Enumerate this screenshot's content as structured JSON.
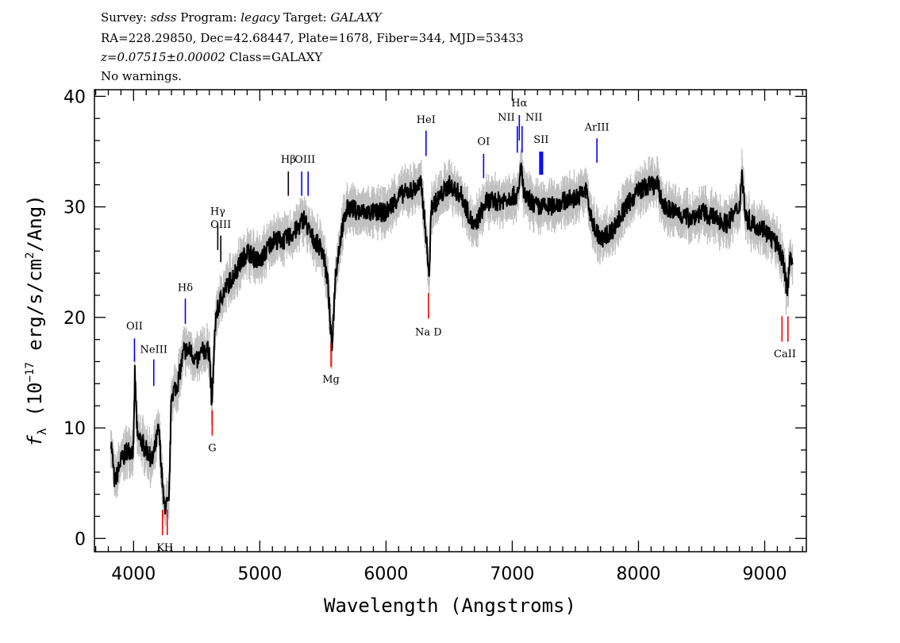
{
  "header": {
    "line1": {
      "survey_label": "Survey: ",
      "survey": "sdss",
      "program_label": " Program: ",
      "program": "legacy",
      "target_label": " Target: ",
      "target": "GALAXY"
    },
    "line2": "RA=228.29850, Dec=42.68447, Plate=1678, Fiber=344, MJD=53433",
    "line3": {
      "redshift": "z=0.07515±0.00002",
      "class": " Class=GALAXY"
    },
    "line4": "No warnings."
  },
  "chart_data": {
    "type": "line",
    "xlabel": "Wavelength (Angstroms)",
    "ylabel": "f_λ (10^-17 erg/s/cm^2/Ang)",
    "ylabel_parts": {
      "f": "f",
      "sub": "λ",
      "pre": " (10",
      "sup": "−17",
      "mid": " erg/s/cm",
      "sup2": "2",
      "post": "/Ang)"
    },
    "xlim": [
      3690,
      9330
    ],
    "ylim": [
      -1.2,
      40.6
    ],
    "xticks": [
      4000,
      5000,
      6000,
      7000,
      8000,
      9000
    ],
    "yticks": [
      0,
      10,
      20,
      30,
      40
    ],
    "xtick_labels": [
      "4000",
      "5000",
      "6000",
      "7000",
      "8000",
      "9000"
    ],
    "ytick_labels": [
      "0",
      "10",
      "20",
      "30",
      "40"
    ],
    "colors": {
      "flux": "#000000",
      "error_band": "#c0c0c0",
      "emission": "#0000ff",
      "absorption": "#ff0000",
      "both": "#000000"
    },
    "spectrum": {
      "wavelength": [
        3820,
        3850,
        3900,
        3950,
        4000,
        4010,
        4030,
        4050,
        4100,
        4150,
        4200,
        4240,
        4280,
        4300,
        4350,
        4400,
        4450,
        4500,
        4550,
        4600,
        4620,
        4650,
        4700,
        4750,
        4800,
        4900,
        5000,
        5100,
        5200,
        5300,
        5350,
        5400,
        5500,
        5540,
        5570,
        5600,
        5650,
        5700,
        5800,
        5900,
        6000,
        6100,
        6200,
        6280,
        6320,
        6340,
        6360,
        6400,
        6500,
        6600,
        6700,
        6750,
        6800,
        6900,
        7000,
        7050,
        7070,
        7090,
        7200,
        7300,
        7400,
        7500,
        7590,
        7620,
        7700,
        7800,
        7900,
        8000,
        8100,
        8150,
        8200,
        8300,
        8400,
        8500,
        8600,
        8700,
        8800,
        8820,
        8850,
        8900,
        9000,
        9100,
        9150,
        9180,
        9200,
        9220
      ],
      "flux": [
        9,
        5,
        7,
        8,
        8,
        15,
        9,
        9,
        8,
        7,
        10,
        3,
        3,
        13,
        14,
        17,
        17,
        16,
        17,
        17,
        12,
        20,
        22,
        23,
        24,
        26,
        25,
        27,
        27,
        28,
        29,
        27.5,
        26,
        23,
        17,
        24,
        28,
        30,
        29.5,
        29.5,
        29.5,
        31,
        31.5,
        32,
        27,
        23.5,
        30,
        30.5,
        32,
        31,
        28,
        29.5,
        30.5,
        30.5,
        31,
        31,
        34,
        31,
        30,
        30,
        30.5,
        30.8,
        31.5,
        29,
        27,
        28,
        30,
        31.5,
        32,
        32,
        30,
        29.5,
        29,
        29.5,
        29,
        28.5,
        30,
        33,
        29,
        28.5,
        28,
        26.5,
        25,
        22,
        26,
        25
      ]
    },
    "lines": [
      {
        "label": "OII",
        "wavelength": [
          4007
        ],
        "kind": "emission",
        "marker": [
          16.0,
          18.1
        ],
        "label_y": 18.9
      },
      {
        "label": "NeIII",
        "wavelength": [
          4160
        ],
        "kind": "emission",
        "marker": [
          13.8,
          16.2
        ],
        "label_y": 16.8
      },
      {
        "label": "Hδ",
        "wavelength": [
          4410
        ],
        "kind": "emission",
        "marker": [
          19.4,
          21.7
        ],
        "label_y": 22.4
      },
      {
        "label": "Hγ",
        "wavelength": [
          4667
        ],
        "kind": "both",
        "marker": [
          26.1,
          28.4
        ],
        "label_y": 29.3
      },
      {
        "label": "OIII",
        "wavelength": [
          4691
        ],
        "kind": "both",
        "marker": [
          25.0,
          27.4
        ],
        "label_y": 28.1
      },
      {
        "label": "Hβ",
        "wavelength": [
          5226
        ],
        "kind": "both",
        "marker": [
          31.0,
          33.2
        ],
        "label_y": 34.0
      },
      {
        "label": "OIII",
        "wavelength": [
          5332,
          5383
        ],
        "kind": "emission",
        "marker": [
          31.0,
          33.2
        ],
        "label_y": 34.0
      },
      {
        "label": "HeI",
        "wavelength": [
          6317
        ],
        "kind": "emission",
        "marker": [
          34.6,
          36.9
        ],
        "label_y": 37.6
      },
      {
        "label": "OI",
        "wavelength": [
          6773
        ],
        "kind": "emission",
        "marker": [
          32.6,
          34.8
        ],
        "label_y": 35.6
      },
      {
        "label": "NII",
        "wavelength": [
          7040
        ],
        "kind": "emission",
        "marker": [
          34.9,
          37.3
        ],
        "label_y": 37.8,
        "anchor": "end"
      },
      {
        "label": "Hα",
        "wavelength": [
          7056
        ],
        "kind": "emission",
        "marker": [
          36.0,
          38.3
        ],
        "label_y": 39.1
      },
      {
        "label": "NII",
        "wavelength": [
          7078
        ],
        "kind": "emission",
        "marker": [
          34.9,
          37.3
        ],
        "label_y": 37.8,
        "anchor": "start"
      },
      {
        "label": "SII",
        "wavelength": [
          7221,
          7237
        ],
        "kind": "emission",
        "marker": [
          32.9,
          35.0
        ],
        "label_y": 35.8
      },
      {
        "label": "ArIII",
        "wavelength": [
          7671
        ],
        "kind": "emission",
        "marker": [
          34.0,
          36.2
        ],
        "label_y": 36.9
      },
      {
        "label": "KH",
        "wavelength": [
          4229,
          4267
        ],
        "kind": "absorption",
        "marker": [
          0.3,
          2.6
        ],
        "label_y": -0.4
      },
      {
        "label": "G",
        "wavelength": [
          4623
        ],
        "kind": "absorption",
        "marker": [
          9.3,
          11.6
        ],
        "label_y": 8.6
      },
      {
        "label": "Mg",
        "wavelength": [
          5564
        ],
        "kind": "absorption",
        "marker": [
          15.5,
          17.7
        ],
        "label_y": 14.8
      },
      {
        "label": "Na D",
        "wavelength": [
          6336
        ],
        "kind": "absorption",
        "marker": [
          19.9,
          22.2
        ],
        "label_y": 19.1
      },
      {
        "label": "CaII",
        "wavelength": [
          9137,
          9184
        ],
        "kind": "absorption",
        "marker": [
          17.8,
          20.1
        ],
        "label_y": 17.1
      }
    ]
  }
}
